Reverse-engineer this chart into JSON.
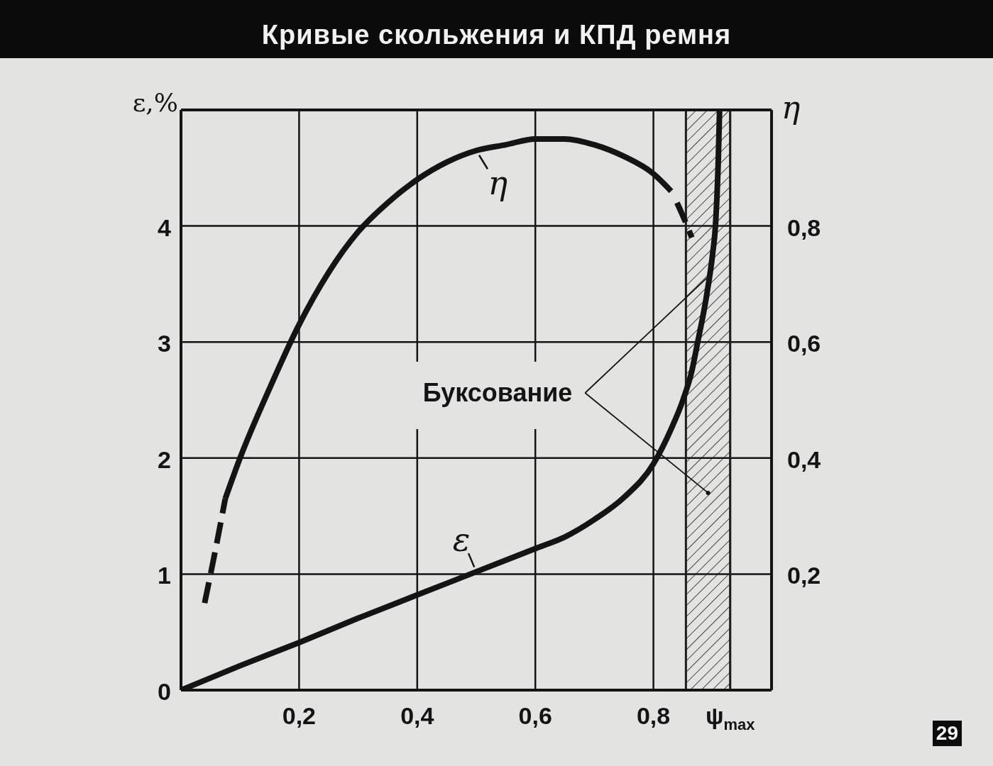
{
  "chart_data": {
    "type": "line",
    "title": "Кривые скольжения и КПД ремня",
    "ylabel": "ε,%",
    "y2label": "η",
    "xlim": [
      0,
      1
    ],
    "xticks": [
      {
        "value": 0.2,
        "label": "0,2"
      },
      {
        "value": 0.4,
        "label": "0,4"
      },
      {
        "value": 0.6,
        "label": "0,6"
      },
      {
        "value": 0.8,
        "label": "0,8"
      },
      {
        "value": 0.93,
        "label": "ψ$_{max}$"
      }
    ],
    "ylim": [
      0,
      5
    ],
    "yticks": [
      0,
      1,
      2,
      3,
      4
    ],
    "y2lim": [
      0,
      1
    ],
    "y2ticks": [
      {
        "value": 0.2,
        "label": "0,2"
      },
      {
        "value": 0.4,
        "label": "0,4"
      },
      {
        "value": 0.6,
        "label": "0,6"
      },
      {
        "value": 0.8,
        "label": "0,8"
      }
    ],
    "grid": true,
    "series": [
      {
        "name": "ε",
        "color": "#141414",
        "line_style": "solid",
        "x": [
          0,
          0.1,
          0.2,
          0.3,
          0.4,
          0.5,
          0.6,
          0.65,
          0.7,
          0.75,
          0.8,
          0.83,
          0.85,
          0.865,
          0.875,
          0.89,
          0.9,
          0.905,
          0.91,
          0.912
        ],
        "values": [
          0,
          0.21,
          0.41,
          0.62,
          0.82,
          1.02,
          1.22,
          1.32,
          1.47,
          1.66,
          1.95,
          2.25,
          2.5,
          2.75,
          3.0,
          3.4,
          3.75,
          4.0,
          4.6,
          5.0
        ]
      },
      {
        "name": "η",
        "axis": "y2",
        "color": "#141414",
        "line_style": "solid",
        "x": [
          0.075,
          0.1,
          0.15,
          0.2,
          0.25,
          0.3,
          0.35,
          0.4,
          0.45,
          0.5,
          0.55,
          0.6,
          0.65,
          0.7,
          0.75,
          0.8,
          0.83
        ],
        "values": [
          0.33,
          0.4,
          0.52,
          0.63,
          0.72,
          0.79,
          0.84,
          0.88,
          0.91,
          0.93,
          0.94,
          0.95,
          0.95,
          0.94,
          0.92,
          0.89,
          0.86
        ]
      },
      {
        "axis": "y2",
        "color": "#141414",
        "line_style": "dashed",
        "x": [
          0.04,
          0.058,
          0.075
        ],
        "values": [
          0.15,
          0.24,
          0.33
        ]
      },
      {
        "axis": "y2",
        "color": "#141414",
        "line_style": "dashed",
        "x": [
          0.84,
          0.853,
          0.865
        ],
        "values": [
          0.84,
          0.81,
          0.78
        ]
      }
    ],
    "bands": [
      {
        "axis": "x",
        "from": 0.855,
        "to": 0.93,
        "label": "Буксование",
        "color": "#1e1e1e"
      }
    ],
    "annotations": [
      "29"
    ]
  }
}
